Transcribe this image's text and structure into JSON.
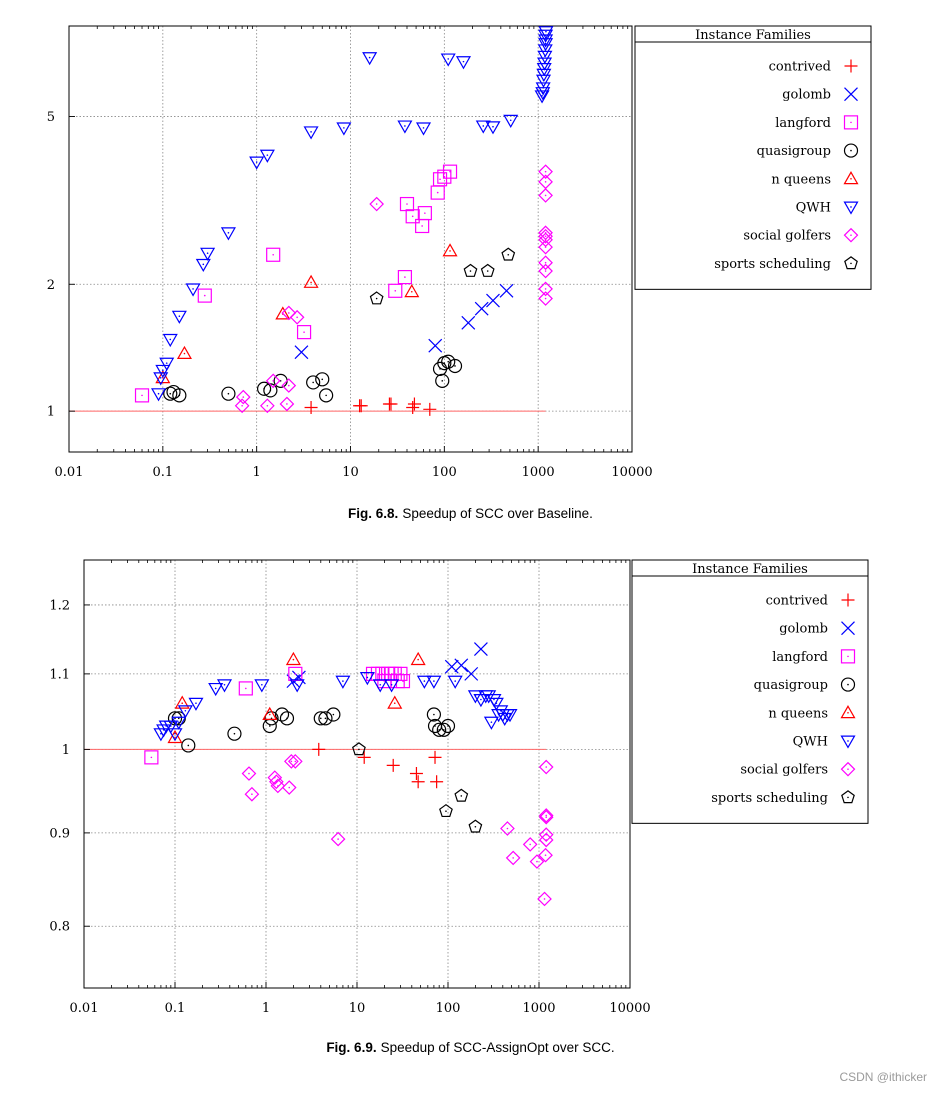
{
  "chart_data": [
    {
      "type": "scatter",
      "title": "",
      "xlabel": "",
      "ylabel": "",
      "xscale": "log",
      "yscale": "log",
      "xlim": [
        0.01,
        10000
      ],
      "ylim": [
        0.8,
        8.2
      ],
      "xticks": [
        0.01,
        0.1,
        1,
        10,
        100,
        1000,
        10000
      ],
      "xtick_labels": [
        "0.01",
        "0.1",
        "1",
        "10",
        "100",
        "1000",
        "10000"
      ],
      "yticks": [
        1,
        2,
        5
      ],
      "ytick_labels": [
        "1",
        "2",
        "5"
      ],
      "grid": true,
      "reference_line_y": 1,
      "reference_line_x_range": [
        0.01,
        1200
      ],
      "legend_title": "Instance Families",
      "legend_position": "right",
      "series": [
        {
          "name": "contrived",
          "marker": "plus",
          "color": "#ff0000",
          "points": [
            [
              3.8,
              1.02
            ],
            [
              12.5,
              1.03
            ],
            [
              13,
              1.03
            ],
            [
              26,
              1.04
            ],
            [
              27,
              1.04
            ],
            [
              46,
              1.02
            ],
            [
              48,
              1.04
            ],
            [
              70,
              1.01
            ]
          ]
        },
        {
          "name": "golomb",
          "marker": "x",
          "color": "#0000ff",
          "points": [
            [
              3,
              1.38
            ],
            [
              80,
              1.43
            ],
            [
              180,
              1.62
            ],
            [
              250,
              1.75
            ],
            [
              330,
              1.83
            ],
            [
              460,
              1.93
            ]
          ]
        },
        {
          "name": "langford",
          "marker": "square",
          "color": "#ff00ff",
          "points": [
            [
              0.06,
              1.09
            ],
            [
              0.28,
              1.88
            ],
            [
              1.5,
              2.35
            ],
            [
              3.2,
              1.54
            ],
            [
              30,
              1.93
            ],
            [
              38,
              2.08
            ],
            [
              40,
              3.1
            ],
            [
              46,
              2.9
            ],
            [
              58,
              2.75
            ],
            [
              62,
              2.95
            ],
            [
              85,
              3.3
            ],
            [
              90,
              3.55
            ],
            [
              100,
              3.6
            ],
            [
              115,
              3.7
            ]
          ]
        },
        {
          "name": "quasigroup",
          "marker": "circle",
          "color": "#000000",
          "points": [
            [
              0.12,
              1.1
            ],
            [
              0.13,
              1.11
            ],
            [
              0.15,
              1.09
            ],
            [
              0.5,
              1.1
            ],
            [
              1.2,
              1.13
            ],
            [
              1.4,
              1.12
            ],
            [
              1.8,
              1.18
            ],
            [
              4,
              1.17
            ],
            [
              5,
              1.19
            ],
            [
              5.5,
              1.09
            ],
            [
              90,
              1.26
            ],
            [
              95,
              1.18
            ],
            [
              100,
              1.3
            ],
            [
              110,
              1.31
            ],
            [
              130,
              1.28
            ]
          ]
        },
        {
          "name": "n queens",
          "marker": "triangle-up",
          "color": "#ff0000",
          "points": [
            [
              0.1,
              1.2
            ],
            [
              0.17,
              1.37
            ],
            [
              1.9,
              1.7
            ],
            [
              3.8,
              2.02
            ],
            [
              45,
              1.92
            ],
            [
              115,
              2.4
            ]
          ]
        },
        {
          "name": "QWH",
          "marker": "triangle-down",
          "color": "#0000ff",
          "points": [
            [
              0.09,
              1.1
            ],
            [
              0.095,
              1.2
            ],
            [
              0.1,
              1.25
            ],
            [
              0.11,
              1.3
            ],
            [
              0.12,
              1.48
            ],
            [
              0.15,
              1.68
            ],
            [
              0.21,
              1.95
            ],
            [
              0.27,
              2.23
            ],
            [
              0.3,
              2.37
            ],
            [
              0.5,
              2.65
            ],
            [
              1,
              3.9
            ],
            [
              1.3,
              4.05
            ],
            [
              3.8,
              4.6
            ],
            [
              8.5,
              4.7
            ],
            [
              16,
              6.9
            ],
            [
              38,
              4.75
            ],
            [
              60,
              4.7
            ],
            [
              110,
              6.85
            ],
            [
              160,
              6.75
            ],
            [
              260,
              4.75
            ],
            [
              330,
              4.73
            ],
            [
              510,
              4.9
            ],
            [
              1100,
              5.6
            ],
            [
              1120,
              5.7
            ],
            [
              1130,
              5.85
            ],
            [
              1140,
              6.1
            ],
            [
              1150,
              6.3
            ],
            [
              1160,
              6.5
            ],
            [
              1170,
              6.7
            ],
            [
              1180,
              6.95
            ],
            [
              1190,
              7.2
            ],
            [
              1200,
              7.45
            ],
            [
              1200,
              7.6
            ],
            [
              1200,
              7.8
            ],
            [
              1210,
              7.95
            ]
          ]
        },
        {
          "name": "social golfers",
          "marker": "diamond",
          "color": "#ff00ff",
          "points": [
            [
              0.7,
              1.03
            ],
            [
              0.72,
              1.08
            ],
            [
              1.3,
              1.03
            ],
            [
              1.5,
              1.18
            ],
            [
              2.1,
              1.04
            ],
            [
              2.2,
              1.15
            ],
            [
              2.2,
              1.71
            ],
            [
              2.7,
              1.67
            ],
            [
              19,
              3.1
            ],
            [
              1200,
              1.85
            ],
            [
              1200,
              1.95
            ],
            [
              1200,
              2.15
            ],
            [
              1200,
              2.25
            ],
            [
              1200,
              2.45
            ],
            [
              1200,
              2.55
            ],
            [
              1200,
              2.6
            ],
            [
              1200,
              2.65
            ],
            [
              1200,
              3.25
            ],
            [
              1200,
              3.5
            ],
            [
              1200,
              3.7
            ]
          ]
        },
        {
          "name": "sports scheduling",
          "marker": "pentagon",
          "color": "#000000",
          "points": [
            [
              19,
              1.85
            ],
            [
              190,
              2.15
            ],
            [
              290,
              2.15
            ],
            [
              480,
              2.35
            ]
          ]
        }
      ]
    },
    {
      "type": "scatter",
      "title": "",
      "xlabel": "",
      "ylabel": "",
      "xscale": "log",
      "yscale": "log",
      "xlim": [
        0.01,
        10000
      ],
      "ylim": [
        0.74,
        1.27
      ],
      "xticks": [
        0.01,
        0.1,
        1,
        10,
        100,
        1000,
        10000
      ],
      "xtick_labels": [
        "0.01",
        "0.1",
        "1",
        "10",
        "100",
        "1000",
        "10000"
      ],
      "yticks": [
        0.8,
        0.9,
        1,
        1.1,
        1.2
      ],
      "ytick_labels": [
        "0.8",
        "0.9",
        "1",
        "1.1",
        "1.2"
      ],
      "grid": true,
      "reference_line_y": 1,
      "reference_line_x_range": [
        0.01,
        1200
      ],
      "legend_title": "Instance Families",
      "legend_position": "right",
      "series": [
        {
          "name": "contrived",
          "marker": "plus",
          "color": "#ff0000",
          "points": [
            [
              3.8,
              1.0
            ],
            [
              12,
              0.99
            ],
            [
              25,
              0.98
            ],
            [
              45,
              0.97
            ],
            [
              47,
              0.96
            ],
            [
              72,
              0.99
            ],
            [
              75,
              0.96
            ]
          ]
        },
        {
          "name": "golomb",
          "marker": "x",
          "color": "#0000ff",
          "points": [
            [
              2,
              1.09
            ],
            [
              2.3,
              1.095
            ],
            [
              110,
              1.11
            ],
            [
              140,
              1.112
            ],
            [
              180,
              1.1
            ],
            [
              230,
              1.135
            ]
          ]
        },
        {
          "name": "langford",
          "marker": "square",
          "color": "#ff00ff",
          "points": [
            [
              0.055,
              0.99
            ],
            [
              0.6,
              1.08
            ],
            [
              2.1,
              1.1
            ],
            [
              15,
              1.1
            ],
            [
              17,
              1.1
            ],
            [
              19,
              1.1
            ],
            [
              20,
              1.09
            ],
            [
              22,
              1.1
            ],
            [
              24,
              1.1
            ],
            [
              26,
              1.1
            ],
            [
              28,
              1.09
            ],
            [
              30,
              1.1
            ],
            [
              32,
              1.09
            ]
          ]
        },
        {
          "name": "quasigroup",
          "marker": "circle",
          "color": "#000000",
          "points": [
            [
              0.1,
              1.04
            ],
            [
              0.11,
              1.04
            ],
            [
              0.14,
              1.005
            ],
            [
              0.45,
              1.02
            ],
            [
              1.1,
              1.03
            ],
            [
              1.15,
              1.04
            ],
            [
              1.5,
              1.045
            ],
            [
              1.7,
              1.04
            ],
            [
              4,
              1.04
            ],
            [
              4.5,
              1.04
            ],
            [
              5.5,
              1.045
            ],
            [
              70,
              1.045
            ],
            [
              72,
              1.03
            ],
            [
              80,
              1.025
            ],
            [
              90,
              1.025
            ],
            [
              100,
              1.03
            ]
          ]
        },
        {
          "name": "n queens",
          "marker": "triangle-up",
          "color": "#ff0000",
          "points": [
            [
              0.1,
              1.015
            ],
            [
              0.12,
              1.06
            ],
            [
              1.1,
              1.045
            ],
            [
              2,
              1.12
            ],
            [
              26,
              1.06
            ],
            [
              47,
              1.12
            ]
          ]
        },
        {
          "name": "QWH",
          "marker": "triangle-down",
          "color": "#0000ff",
          "points": [
            [
              0.07,
              1.02
            ],
            [
              0.075,
              1.025
            ],
            [
              0.08,
              1.03
            ],
            [
              0.09,
              1.03
            ],
            [
              0.1,
              1.02
            ],
            [
              0.11,
              1.035
            ],
            [
              0.13,
              1.05
            ],
            [
              0.17,
              1.06
            ],
            [
              0.28,
              1.08
            ],
            [
              0.35,
              1.085
            ],
            [
              0.9,
              1.085
            ],
            [
              2.2,
              1.085
            ],
            [
              7,
              1.09
            ],
            [
              13,
              1.095
            ],
            [
              18,
              1.085
            ],
            [
              24,
              1.085
            ],
            [
              55,
              1.09
            ],
            [
              70,
              1.09
            ],
            [
              120,
              1.09
            ],
            [
              200,
              1.07
            ],
            [
              230,
              1.065
            ],
            [
              260,
              1.07
            ],
            [
              280,
              1.07
            ],
            [
              300,
              1.035
            ],
            [
              320,
              1.065
            ],
            [
              340,
              1.06
            ],
            [
              360,
              1.045
            ],
            [
              380,
              1.05
            ],
            [
              400,
              1.045
            ],
            [
              420,
              1.04
            ],
            [
              450,
              1.045
            ],
            [
              480,
              1.045
            ]
          ]
        },
        {
          "name": "social golfers",
          "marker": "diamond",
          "color": "#ff00ff",
          "points": [
            [
              0.65,
              0.97
            ],
            [
              0.7,
              0.945
            ],
            [
              1.25,
              0.965
            ],
            [
              1.3,
              0.96
            ],
            [
              1.35,
              0.955
            ],
            [
              1.8,
              0.953
            ],
            [
              1.9,
              0.985
            ],
            [
              2.1,
              0.985
            ],
            [
              6.2,
              0.893
            ],
            [
              450,
              0.905
            ],
            [
              520,
              0.872
            ],
            [
              800,
              0.887
            ],
            [
              950,
              0.868
            ],
            [
              1150,
              0.828
            ],
            [
              1180,
              0.875
            ],
            [
              1200,
              0.892
            ],
            [
              1200,
              0.898
            ],
            [
              1200,
              0.918
            ],
            [
              1200,
              0.92
            ],
            [
              1200,
              0.978
            ]
          ]
        },
        {
          "name": "sports scheduling",
          "marker": "pentagon",
          "color": "#000000",
          "points": [
            [
              10.5,
              1.0
            ],
            [
              95,
              0.925
            ],
            [
              140,
              0.943
            ],
            [
              200,
              0.907
            ]
          ]
        }
      ]
    }
  ],
  "captions": [
    {
      "label": "Fig. 6.8.",
      "text": "Speedup of SCC over Baseline."
    },
    {
      "label": "Fig. 6.9.",
      "text": "Speedup of SCC-AssignOpt over SCC."
    }
  ],
  "watermark": "CSDN @ithicker"
}
